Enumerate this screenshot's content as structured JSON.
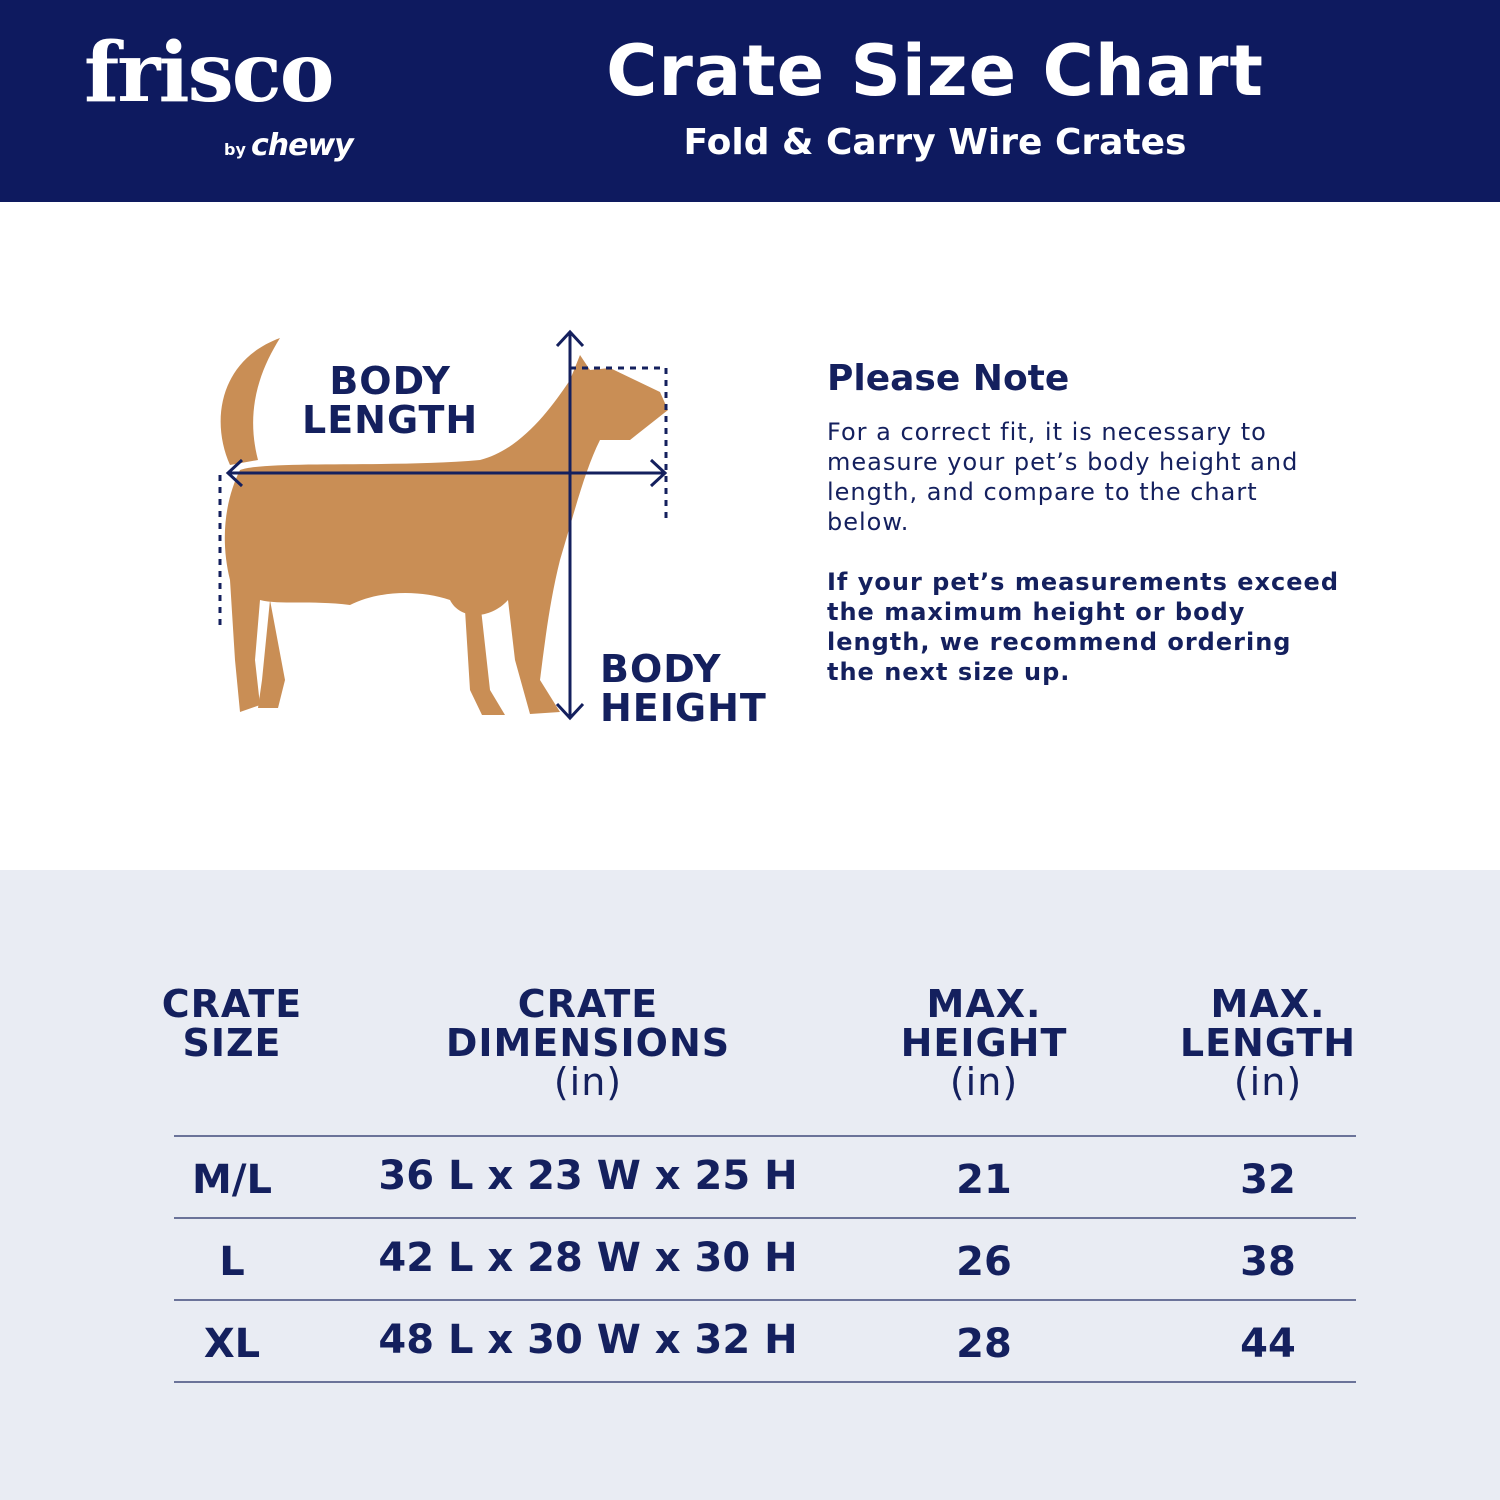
{
  "brand": {
    "logo": "frisco",
    "sub_by": "by",
    "sub_chewy": "chewy"
  },
  "header": {
    "title": "Crate Size Chart",
    "subtitle": "Fold & Carry Wire Crates"
  },
  "diagram": {
    "body_length": [
      "BODY",
      "LENGTH"
    ],
    "body_height": [
      "BODY",
      "HEIGHT"
    ]
  },
  "note": {
    "title": "Please Note",
    "text": "For a correct fit, it is necessary to measure your pet’s body height and length, and compare to the chart below.",
    "bold_text": "If your pet’s measurements exceed the maximum height or body length, we recommend ordering the next size up."
  },
  "table": {
    "headers": [
      {
        "l1": "CRATE",
        "l2": "SIZE",
        "unit": ""
      },
      {
        "l1": "CRATE",
        "l2": "DIMENSIONS",
        "unit": "(in)"
      },
      {
        "l1": "MAX.",
        "l2": "HEIGHT",
        "unit": "(in)"
      },
      {
        "l1": "MAX.",
        "l2": "LENGTH",
        "unit": "(in)"
      }
    ],
    "rows": [
      [
        "M/L",
        "36 L x 23 W x 25 H",
        "21",
        "32"
      ],
      [
        "L",
        "42 L x 28 W x 30 H",
        "26",
        "38"
      ],
      [
        "XL",
        "48 L x 30 W x 32 H",
        "28",
        "44"
      ]
    ]
  },
  "colors": {
    "navy": "#0e1a5f",
    "text": "#14205e",
    "table_bg": "#e9ecf3"
  }
}
